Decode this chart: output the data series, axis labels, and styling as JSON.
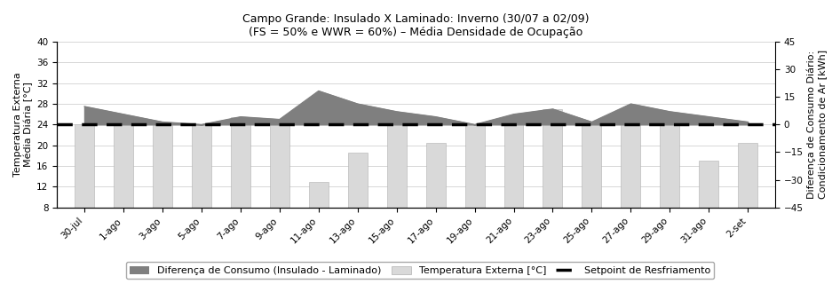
{
  "title_line1": "Campo Grande: Insulado X Laminado: Inverno (30/07 a 02/09)",
  "title_line2": "(FS = 50% e WWR = 60%) – Média Densidade de Ocupação",
  "xlabel_dates": [
    "30-jul",
    "1-ago",
    "3-ago",
    "5-ago",
    "7-ago",
    "9-ago",
    "11-ago",
    "13-ago",
    "15-ago",
    "17-ago",
    "19-ago",
    "21-ago",
    "23-ago",
    "25-ago",
    "27-ago",
    "29-ago",
    "31-ago",
    "2-set"
  ],
  "temp_ext": [
    24.0,
    24.0,
    24.0,
    24.0,
    25.5,
    24.0,
    13.0,
    18.5,
    24.0,
    20.5,
    24.0,
    24.5,
    27.0,
    24.0,
    24.0,
    24.0,
    17.0,
    20.5
  ],
  "diff_consumo": [
    27.5,
    26.0,
    24.5,
    24.0,
    25.5,
    25.0,
    30.5,
    28.0,
    26.5,
    25.5,
    24.0,
    26.0,
    27.0,
    24.5,
    28.0,
    26.5,
    25.5,
    24.5
  ],
  "setpoint": 24.0,
  "ylim_left": [
    8,
    40
  ],
  "ylim_right": [
    -45,
    45
  ],
  "yticks_left": [
    8,
    12,
    16,
    20,
    24,
    28,
    32,
    36,
    40
  ],
  "yticks_right": [
    -45,
    -30,
    -15,
    0,
    15,
    30,
    45
  ],
  "bar_color_temp": "#d9d9d9",
  "fill_color_diff": "#7f7f7f",
  "setpoint_color": "#000000",
  "ylabel_left": "Temperatura Externa\nMédia Diária [°C]",
  "ylabel_right": "Diferença de Consumo Diário:\nCondicionamento de Ar [kWh]",
  "legend_diff": "Diferença de Consumo (Insulado - Laminado)",
  "legend_temp": "Temperatura Externa [°C]",
  "legend_setpoint": "Setpoint de Resfriamento",
  "background_color": "#ffffff",
  "grid_color": "#c8c8c8",
  "bar_bottom": 8,
  "bar_width": 0.5
}
